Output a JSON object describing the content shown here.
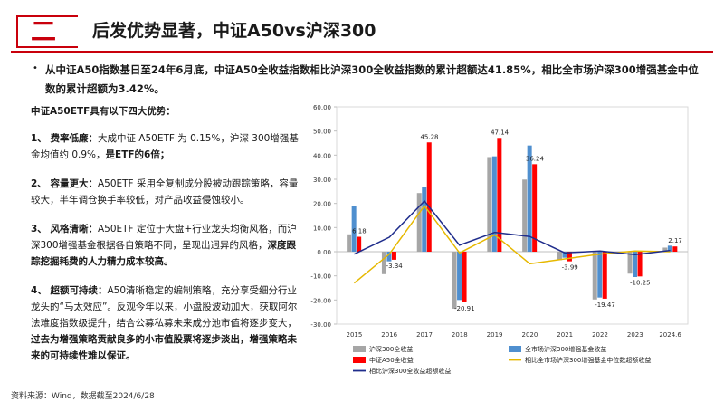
{
  "header": {
    "section_num": "二",
    "title": "后发优势显著，中证A50vs沪深300"
  },
  "bullet": "从中证A50指数基日至24年6月底，中证A50全收益指数相比沪深300全收益指数的累计超额达41.85%，相比全市场沪深300增强基金中位数的累计超额为3.42%。",
  "left": {
    "head": "中证A50ETF具有以下四大优势：",
    "advantages": [
      {
        "label": "1、 费率低廉：",
        "text": "大成中证 A50ETF 为 0.15%，沪深 300增强基金均值约 0.9%，",
        "bold": "是ETF的6倍；"
      },
      {
        "label": "2、 容量更大：",
        "text": "A50ETF 采用全复制成分股被动跟踪策略，容量较大，半年调仓换手率较低，对产品收益侵蚀较小。",
        "bold": ""
      },
      {
        "label": "3、 风格清晰：",
        "text": "A50ETF 定位于大盘+行业龙头均衡风格，而沪深300增强基金根据各自策略不同，呈现出迥异的风格，",
        "bold": "深度跟踪挖掘耗费的人力精力成本较高。"
      },
      {
        "label": "4、 超额可持续：",
        "text": "A50清晰稳定的编制策略，充分享受细分行业龙头的“马太效应”。反观今年以来，小盘股波动加大，获取阿尔法难度指数级提升，结合公募私募未来成分池市值将逐步变大，",
        "bold": "过去为增强策略贡献良多的小市值股票将逐步淡出，增强策略未来的可持续性难以保证。"
      }
    ]
  },
  "source": "资料来源：Wind，数据截至2024/6/28",
  "chart_data": {
    "type": "bar",
    "categories": [
      "2015",
      "2016",
      "2017",
      "2018",
      "2019",
      "2020",
      "2021",
      "2022",
      "2023",
      "2024.6"
    ],
    "ylim": [
      -30,
      60
    ],
    "yticks": [
      "60.00",
      "50.00",
      "40.00",
      "30.00",
      "20.00",
      "10.00",
      "0.00",
      "-10.00",
      "-20.00",
      "-30.00"
    ],
    "series": [
      {
        "name": "沪深300全收益",
        "type": "bar",
        "color": "#a6a6a6",
        "values": [
          7.2,
          -9.3,
          24.3,
          -23.6,
          39.2,
          29.9,
          -3.5,
          -19.8,
          -9.1,
          1.7
        ]
      },
      {
        "name": "全市场沪深300增强基金收益",
        "type": "bar",
        "color": "#4f8fcf",
        "values": [
          19.0,
          -4.0,
          27.0,
          -20.0,
          39.5,
          44.0,
          -2.5,
          -19.0,
          -10.5,
          2.5
        ]
      },
      {
        "name": "中证A50全收益",
        "type": "bar",
        "color": "#ff0000",
        "values": [
          6.18,
          -3.34,
          45.28,
          -20.91,
          47.14,
          36.24,
          -3.99,
          -19.47,
          -10.25,
          2.17
        ]
      },
      {
        "name": "相比全市场沪深300增强基金中位数超额收益",
        "type": "line",
        "color": "#e6b800",
        "values": [
          -13.0,
          -1.0,
          19.0,
          -0.5,
          7.0,
          -5.0,
          -3.0,
          -1.0,
          0.3,
          0.0
        ]
      },
      {
        "name": "相比沪深300全收益超额收益",
        "type": "line",
        "color": "#1f2d8c",
        "values": [
          -1.0,
          6.0,
          21.0,
          2.7,
          8.0,
          6.3,
          -0.5,
          0.3,
          -1.2,
          0.5
        ]
      }
    ],
    "data_labels": [
      "6.18",
      "-3.34",
      "45.28",
      "-20.91",
      "47.14",
      "36.24",
      "-3.99",
      "-19.47",
      "-10.25",
      "2.17"
    ]
  }
}
